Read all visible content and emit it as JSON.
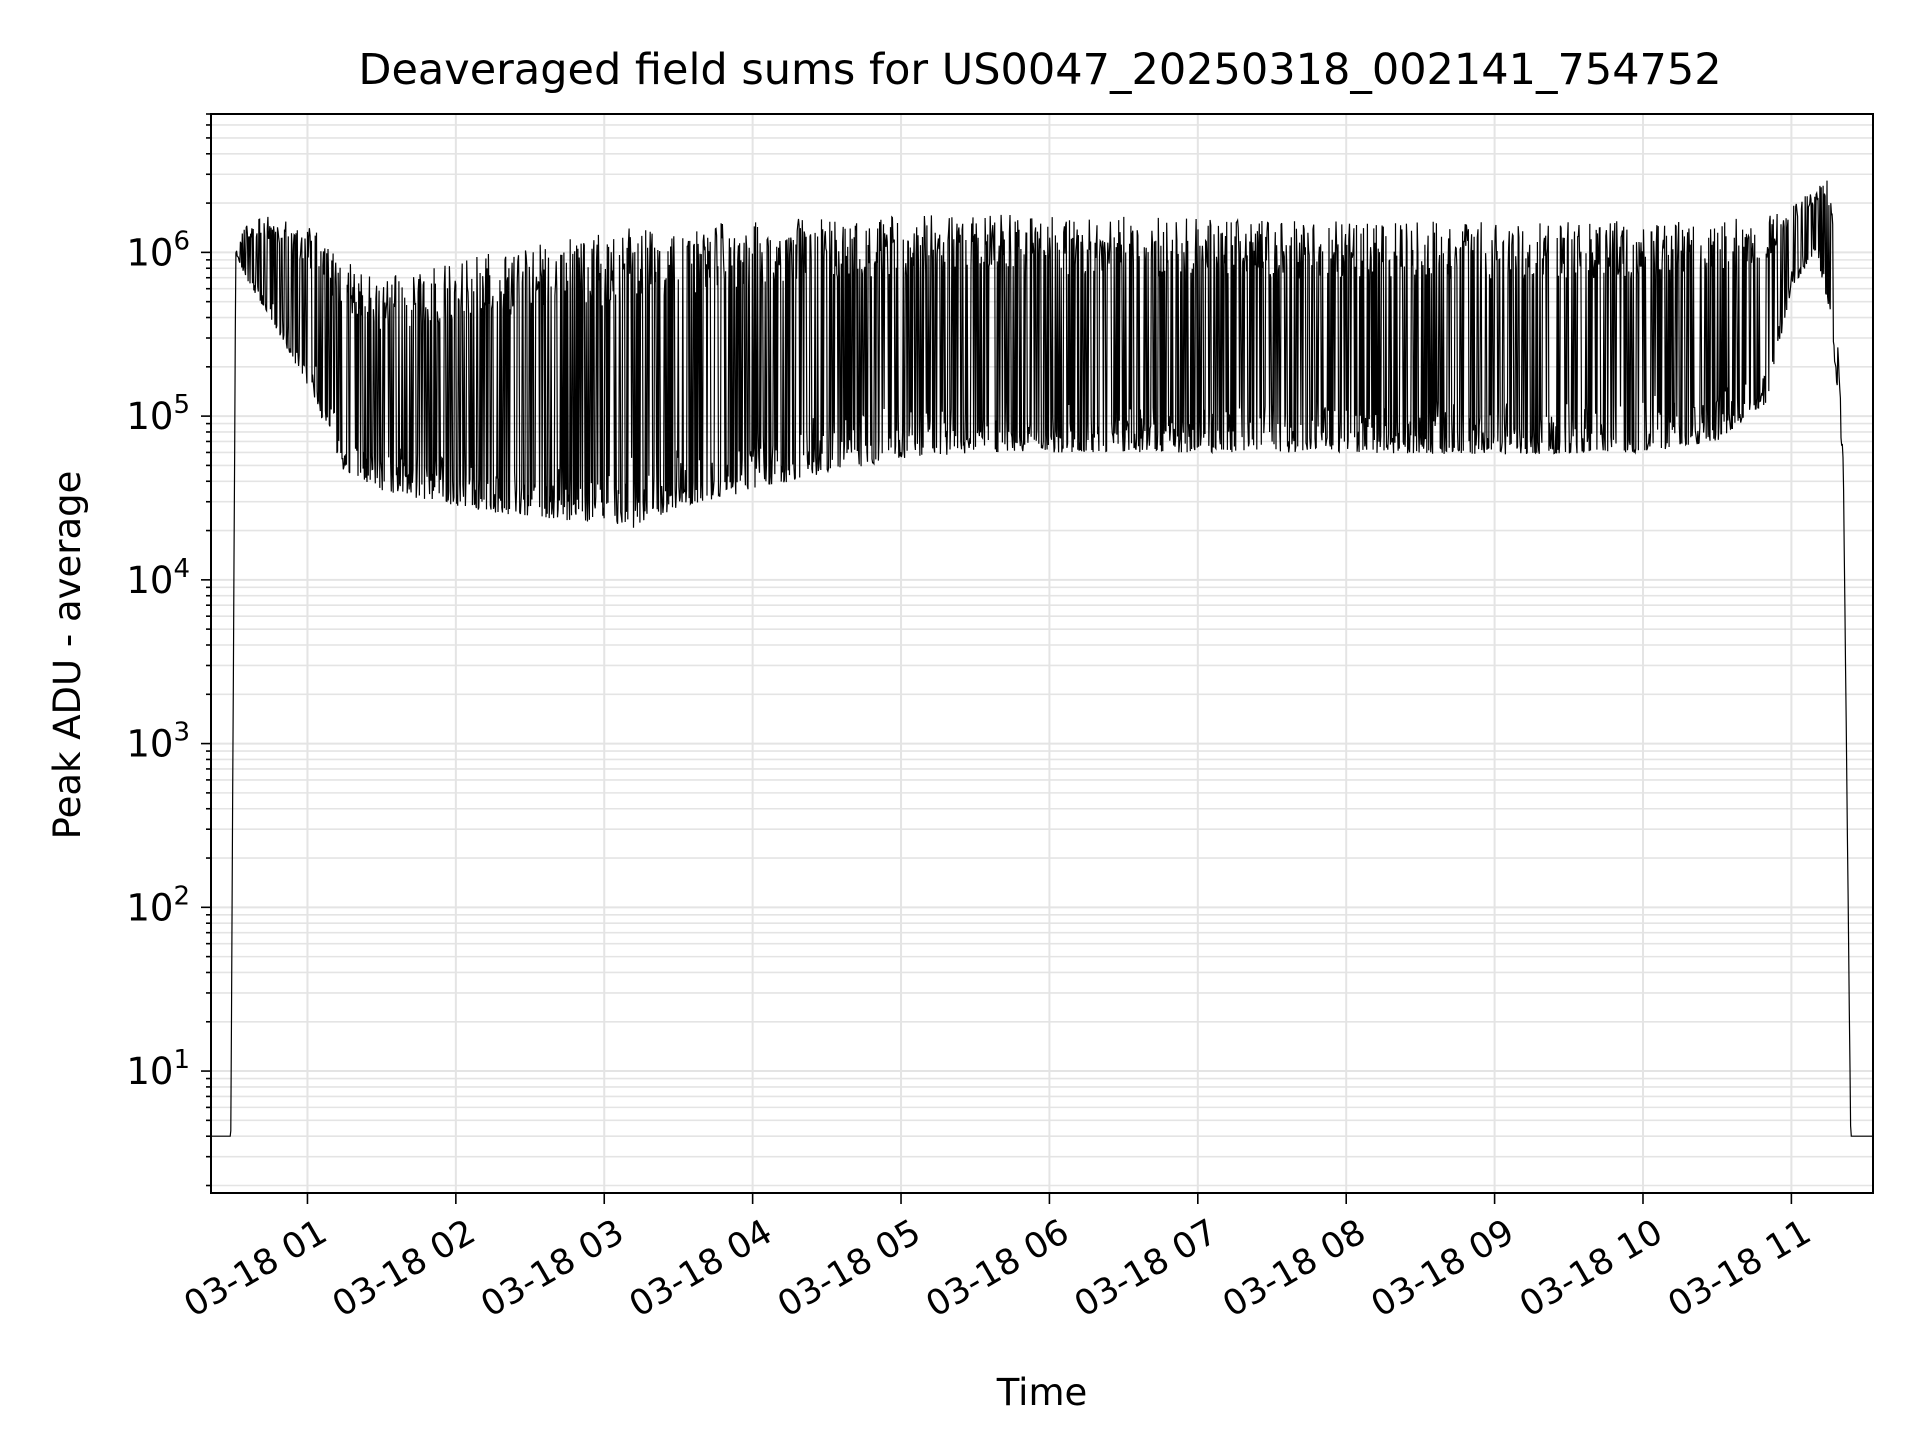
{
  "chart_data": {
    "type": "line",
    "title": "Deaveraged field sums for US0047_20250318_002141_754752",
    "xlabel": "Time",
    "ylabel": "Peak ADU - average",
    "yscale": "log",
    "ylim": [
      1.8,
      7000000
    ],
    "xlim": [
      "03-18 00:21",
      "03-18 11:33"
    ],
    "grid": true,
    "grid_color": "#e4e4e4",
    "line_color": "#000000",
    "x_ticks": [
      "03-18 01",
      "03-18 02",
      "03-18 03",
      "03-18 04",
      "03-18 05",
      "03-18 06",
      "03-18 07",
      "03-18 08",
      "03-18 09",
      "03-18 10",
      "03-18 11"
    ],
    "y_ticks": [
      {
        "base": "10",
        "exp": "1"
      },
      {
        "base": "10",
        "exp": "2"
      },
      {
        "base": "10",
        "exp": "3"
      },
      {
        "base": "10",
        "exp": "4"
      },
      {
        "base": "10",
        "exp": "5"
      },
      {
        "base": "10",
        "exp": "6"
      }
    ],
    "series": [
      {
        "points_note": "approximate envelope (minimum baseline and peak level) of the dense series",
        "x": [
          "03-18 00:21",
          "03-18 00:28",
          "03-18 00:29",
          "03-18 00:31",
          "03-18 00:35",
          "03-18 00:45",
          "03-18 01:00",
          "03-18 01:15",
          "03-18 01:30",
          "03-18 02:00",
          "03-18 02:30",
          "03-18 03:00",
          "03-18 03:10",
          "03-18 03:30",
          "03-18 04:00",
          "03-18 04:30",
          "03-18 05:00",
          "03-18 05:30",
          "03-18 06:00",
          "03-18 06:30",
          "03-18 07:00",
          "03-18 08:00",
          "03-18 09:00",
          "03-18 10:00",
          "03-18 10:30",
          "03-18 10:50",
          "03-18 11:00",
          "03-18 11:10",
          "03-18 11:16",
          "03-18 11:21",
          "03-18 11:24",
          "03-18 11:33"
        ],
        "low": [
          4,
          4,
          4,
          1000000,
          700000,
          400000,
          150000,
          45000,
          35000,
          28000,
          24000,
          22000,
          20000,
          28000,
          35000,
          45000,
          55000,
          60000,
          60000,
          60000,
          60000,
          60000,
          58000,
          60000,
          70000,
          120000,
          600000,
          1000000,
          400000,
          50000,
          4,
          4
        ],
        "high": [
          4,
          4,
          4,
          1000000,
          1500000,
          1700000,
          1500000,
          900000,
          700000,
          900000,
          1100000,
          1300000,
          1400000,
          1500000,
          1600000,
          1650000,
          1700000,
          1750000,
          1700000,
          1650000,
          1600000,
          1550000,
          1550000,
          1550000,
          1600000,
          1700000,
          2000000,
          2500000,
          3000000,
          50000,
          4,
          4
        ]
      }
    ]
  }
}
